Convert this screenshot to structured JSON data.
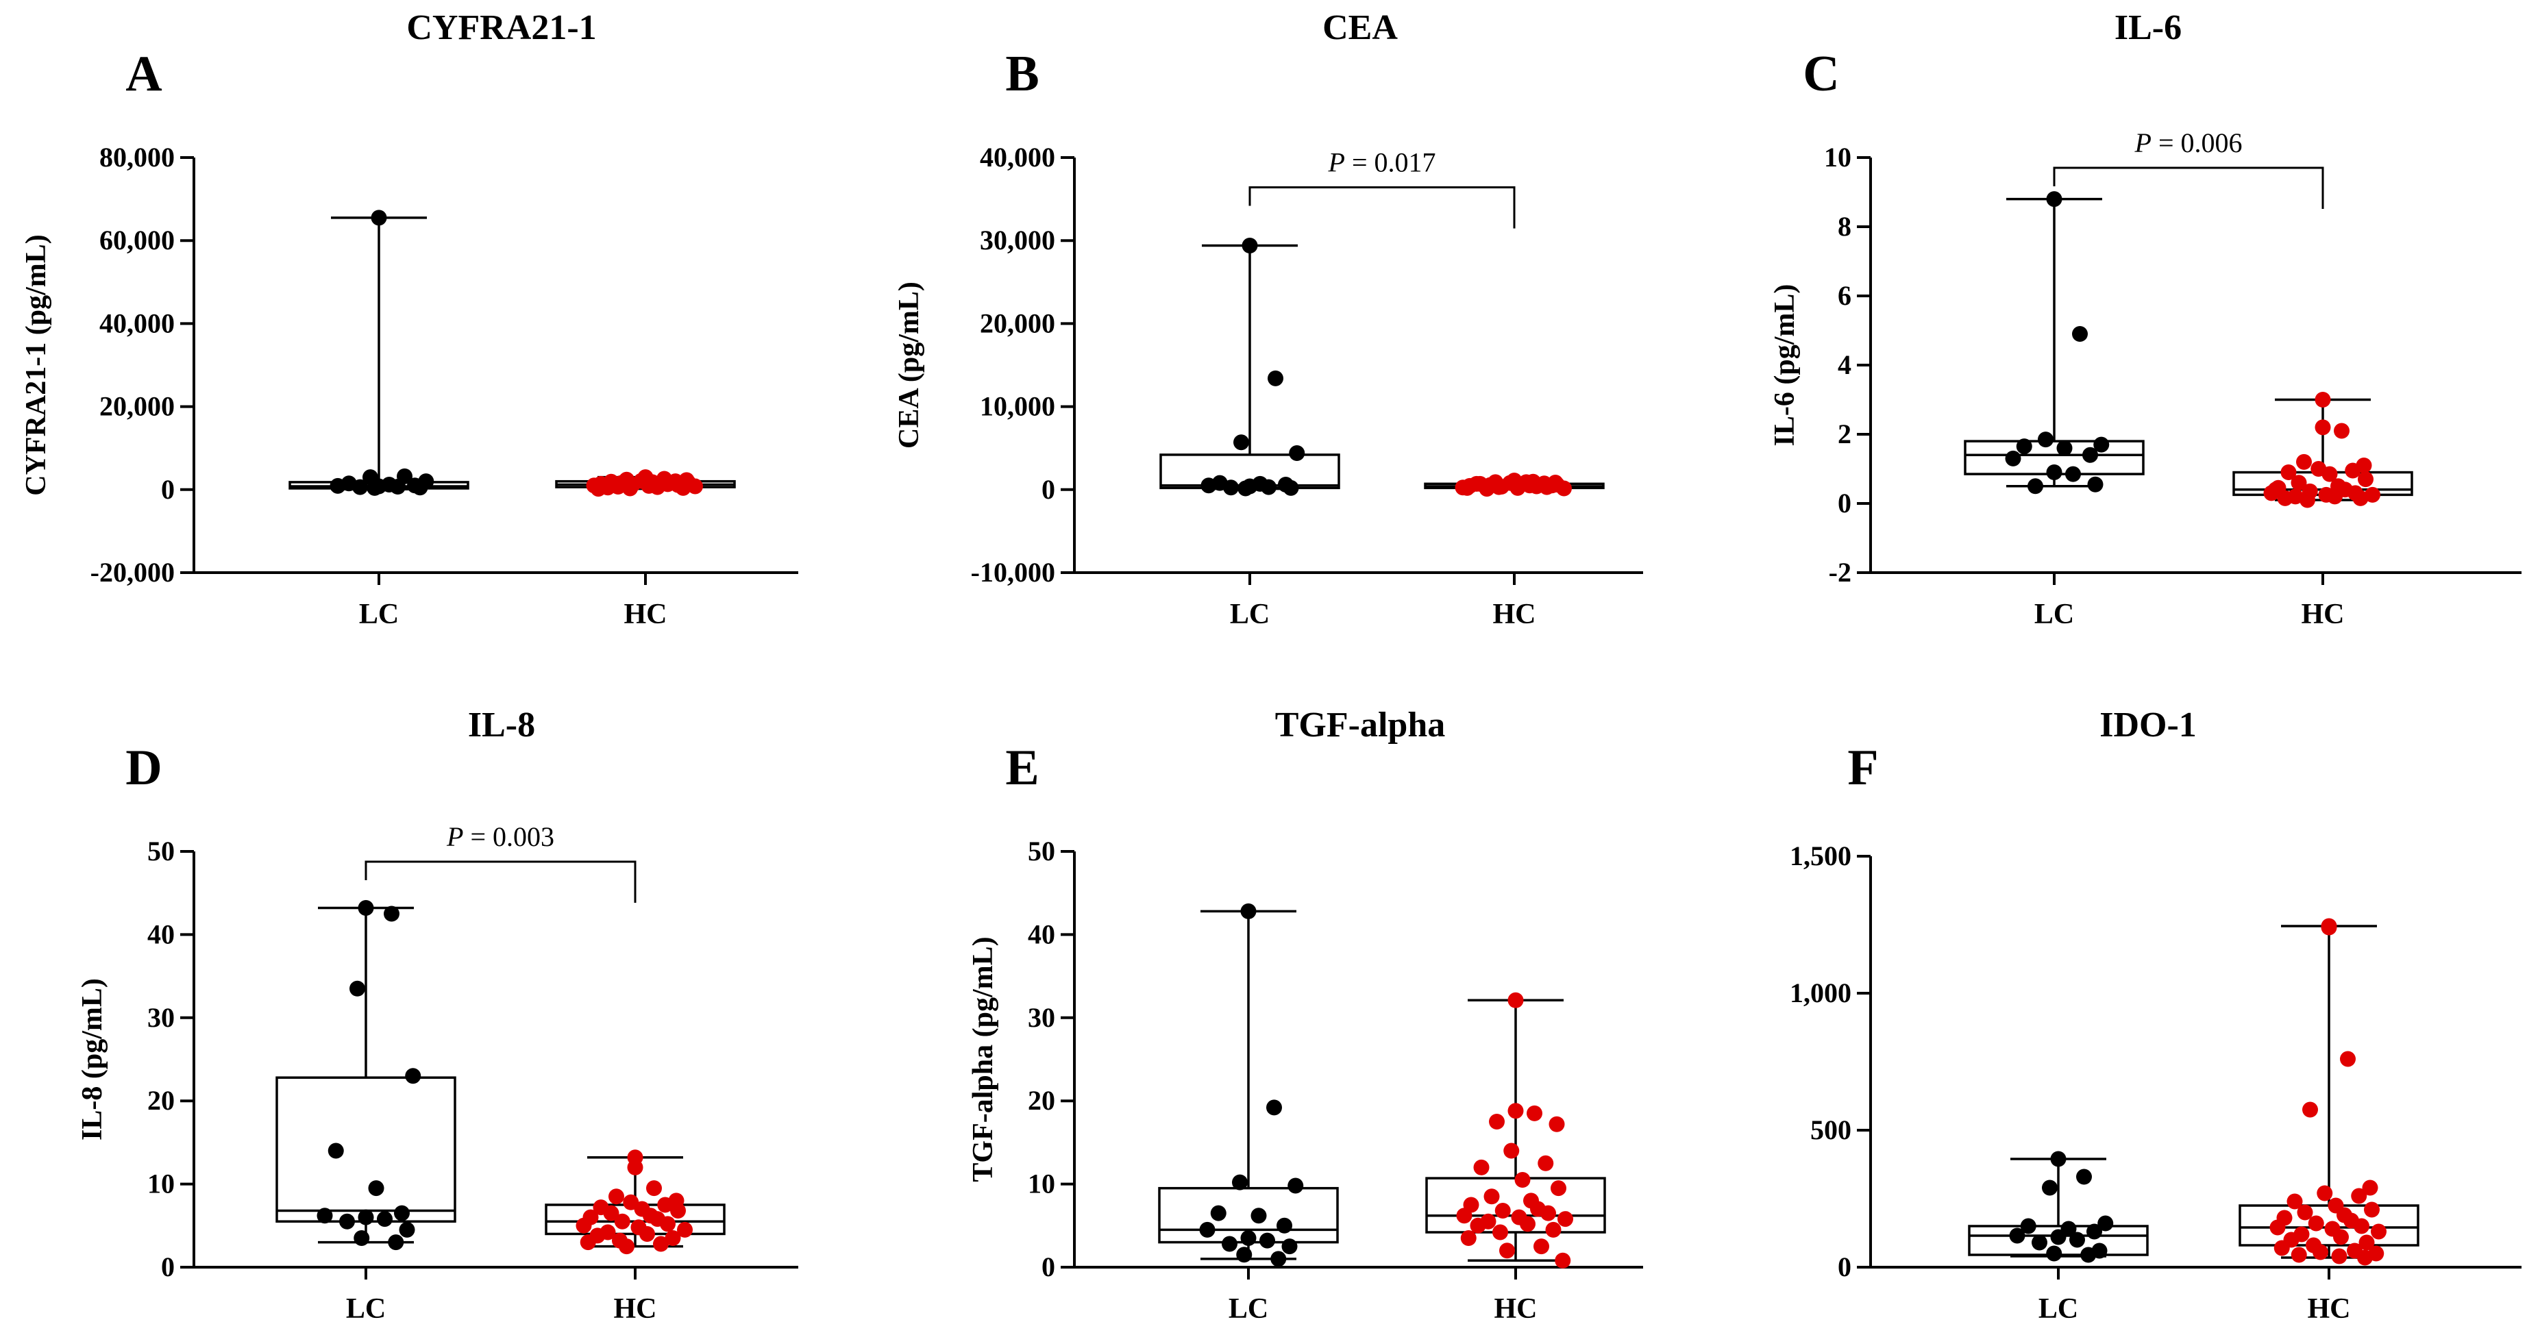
{
  "chart_data": [
    {
      "panel": "A",
      "title": "CYFRA21-1",
      "type": "box-scatter",
      "ylabel": "CYFRA21-1 (pg/mL)",
      "ylim": [
        -20000,
        80000
      ],
      "yticks": [
        -20000,
        0,
        20000,
        40000,
        60000,
        80000
      ],
      "ytick_labels": [
        "-20,000",
        "0",
        "20,000",
        "40,000",
        "60,000",
        "80,000"
      ],
      "categories": [
        "LC",
        "HC"
      ],
      "groups": [
        {
          "name": "LC",
          "color": "#000000",
          "box": {
            "min": 100,
            "q1": 300,
            "median": 800,
            "q3": 1800,
            "max": 65500
          },
          "points": [
            65500,
            3200,
            3000,
            2000,
            1500,
            1200,
            1000,
            900,
            800,
            700,
            600,
            500,
            400
          ]
        },
        {
          "name": "HC",
          "color": "#e00000",
          "box": {
            "min": 200,
            "q1": 600,
            "median": 1200,
            "q3": 2000,
            "max": 3000
          },
          "points": [
            3000,
            2800,
            2600,
            2400,
            2300,
            2100,
            2000,
            1900,
            1800,
            1700,
            1600,
            1500,
            1400,
            1300,
            1200,
            1100,
            1000,
            900,
            800,
            700,
            600,
            500,
            400,
            300,
            200
          ]
        }
      ],
      "pvalue": null
    },
    {
      "panel": "B",
      "title": "CEA",
      "type": "box-scatter",
      "ylabel": "CEA (pg/mL)",
      "ylim": [
        -10000,
        40000
      ],
      "yticks": [
        -10000,
        0,
        10000,
        20000,
        30000,
        40000
      ],
      "ytick_labels": [
        "-10,000",
        "0",
        "10,000",
        "20,000",
        "30,000",
        "40,000"
      ],
      "categories": [
        "LC",
        "HC"
      ],
      "groups": [
        {
          "name": "LC",
          "color": "#000000",
          "box": {
            "min": 100,
            "q1": 200,
            "median": 500,
            "q3": 4200,
            "max": 29400
          },
          "points": [
            29400,
            13400,
            5700,
            4400,
            800,
            700,
            600,
            500,
            400,
            300,
            250,
            200,
            150
          ]
        },
        {
          "name": "HC",
          "color": "#e00000",
          "box": {
            "min": 100,
            "q1": 200,
            "median": 400,
            "q3": 700,
            "max": 1100
          },
          "points": [
            1100,
            1000,
            950,
            900,
            850,
            800,
            750,
            700,
            650,
            600,
            550,
            500,
            450,
            400,
            350,
            300,
            250,
            200,
            150,
            100,
            900,
            700,
            500,
            300,
            200
          ]
        }
      ],
      "pvalue": {
        "label": "P",
        "text": " = 0.017"
      }
    },
    {
      "panel": "C",
      "title": "IL-6",
      "type": "box-scatter",
      "ylabel": "IL-6 (pg/mL)",
      "ylim": [
        -2,
        10
      ],
      "yticks": [
        -2,
        0,
        2,
        4,
        6,
        8,
        10
      ],
      "ytick_labels": [
        "-2",
        "0",
        "2",
        "4",
        "6",
        "8",
        "10"
      ],
      "categories": [
        "LC",
        "HC"
      ],
      "groups": [
        {
          "name": "LC",
          "color": "#000000",
          "box": {
            "min": 0.5,
            "q1": 0.85,
            "median": 1.4,
            "q3": 1.8,
            "max": 8.8
          },
          "points": [
            8.8,
            4.9,
            1.85,
            1.7,
            1.65,
            1.6,
            1.4,
            1.3,
            0.9,
            0.85,
            0.5,
            0.55
          ]
        },
        {
          "name": "HC",
          "color": "#e00000",
          "box": {
            "min": 0.1,
            "q1": 0.25,
            "median": 0.4,
            "q3": 0.9,
            "max": 3.0
          },
          "points": [
            3.0,
            2.2,
            2.1,
            1.2,
            1.1,
            1.0,
            0.95,
            0.9,
            0.85,
            0.7,
            0.6,
            0.5,
            0.45,
            0.4,
            0.35,
            0.3,
            0.3,
            0.25,
            0.25,
            0.2,
            0.2,
            0.15,
            0.15,
            0.1,
            0.4
          ]
        }
      ],
      "pvalue": {
        "label": "P",
        "text": " = 0.006"
      }
    },
    {
      "panel": "D",
      "title": "IL-8",
      "type": "box-scatter",
      "ylabel": "IL-8 (pg/mL)",
      "ylim": [
        0,
        50
      ],
      "yticks": [
        0,
        10,
        20,
        30,
        40,
        50
      ],
      "ytick_labels": [
        "0",
        "10",
        "20",
        "30",
        "40",
        "50"
      ],
      "categories": [
        "LC",
        "HC"
      ],
      "groups": [
        {
          "name": "LC",
          "color": "#000000",
          "box": {
            "min": 3,
            "q1": 5.5,
            "median": 6.8,
            "q3": 22.8,
            "max": 43.2
          },
          "points": [
            43.2,
            42.5,
            33.5,
            23,
            14,
            9.5,
            6.5,
            6.2,
            6.0,
            5.8,
            5.5,
            4.5,
            3.5,
            3.0
          ]
        },
        {
          "name": "HC",
          "color": "#e00000",
          "box": {
            "min": 2.5,
            "q1": 4.0,
            "median": 5.5,
            "q3": 7.5,
            "max": 13.2
          },
          "points": [
            13.2,
            12.0,
            9.5,
            8.5,
            8.0,
            7.8,
            7.5,
            7.2,
            7.0,
            6.8,
            6.5,
            6.2,
            6.0,
            5.8,
            5.5,
            5.2,
            5.0,
            4.8,
            4.5,
            4.2,
            4.0,
            3.8,
            3.5,
            3.2,
            3.0,
            2.8,
            2.5
          ]
        }
      ],
      "pvalue": {
        "label": "P",
        "text": " = 0.003"
      }
    },
    {
      "panel": "E",
      "title": "TGF-alpha",
      "type": "box-scatter",
      "ylabel": "TGF-alpha (pg/mL)",
      "ylim": [
        0,
        50
      ],
      "yticks": [
        0,
        10,
        20,
        30,
        40,
        50
      ],
      "ytick_labels": [
        "0",
        "10",
        "20",
        "30",
        "40",
        "50"
      ],
      "categories": [
        "LC",
        "HC"
      ],
      "groups": [
        {
          "name": "LC",
          "color": "#000000",
          "box": {
            "min": 1,
            "q1": 3,
            "median": 4.5,
            "q3": 9.5,
            "max": 42.8
          },
          "points": [
            42.8,
            19.2,
            10.2,
            9.8,
            6.5,
            6.2,
            5.0,
            4.5,
            3.5,
            3.2,
            2.8,
            2.5,
            1.5,
            1.0
          ]
        },
        {
          "name": "HC",
          "color": "#e00000",
          "box": {
            "min": 0.8,
            "q1": 4.2,
            "median": 6.2,
            "q3": 10.7,
            "max": 32.1
          },
          "points": [
            32.1,
            18.8,
            18.5,
            17.5,
            17.2,
            14.0,
            12.5,
            12.0,
            10.5,
            9.5,
            8.5,
            8.0,
            7.5,
            7.0,
            6.8,
            6.5,
            6.2,
            6.0,
            5.8,
            5.5,
            5.2,
            5.0,
            4.5,
            4.2,
            3.5,
            2.5,
            2.0,
            0.8
          ]
        }
      ],
      "pvalue": null
    },
    {
      "panel": "F",
      "title": "IDO-1",
      "type": "box-scatter",
      "ylabel": "",
      "ylim": [
        0,
        1500
      ],
      "yticks": [
        0,
        500,
        1000,
        1500
      ],
      "ytick_labels": [
        "0",
        "500",
        "1,000",
        "1,500"
      ],
      "categories": [
        "LC",
        "HC"
      ],
      "groups": [
        {
          "name": "LC",
          "color": "#000000",
          "box": {
            "min": 40,
            "q1": 45,
            "median": 115,
            "q3": 150,
            "max": 395
          },
          "points": [
            395,
            330,
            290,
            160,
            150,
            140,
            130,
            115,
            110,
            100,
            90,
            60,
            50,
            45
          ]
        },
        {
          "name": "HC",
          "color": "#e00000",
          "box": {
            "min": 35,
            "q1": 80,
            "median": 145,
            "q3": 225,
            "max": 1245
          },
          "points": [
            1245,
            1240,
            760,
            575,
            290,
            270,
            260,
            240,
            225,
            210,
            200,
            190,
            180,
            170,
            160,
            150,
            145,
            140,
            130,
            120,
            110,
            100,
            90,
            80,
            70,
            60,
            55,
            50,
            45,
            40,
            35
          ]
        }
      ],
      "pvalue": null
    }
  ]
}
